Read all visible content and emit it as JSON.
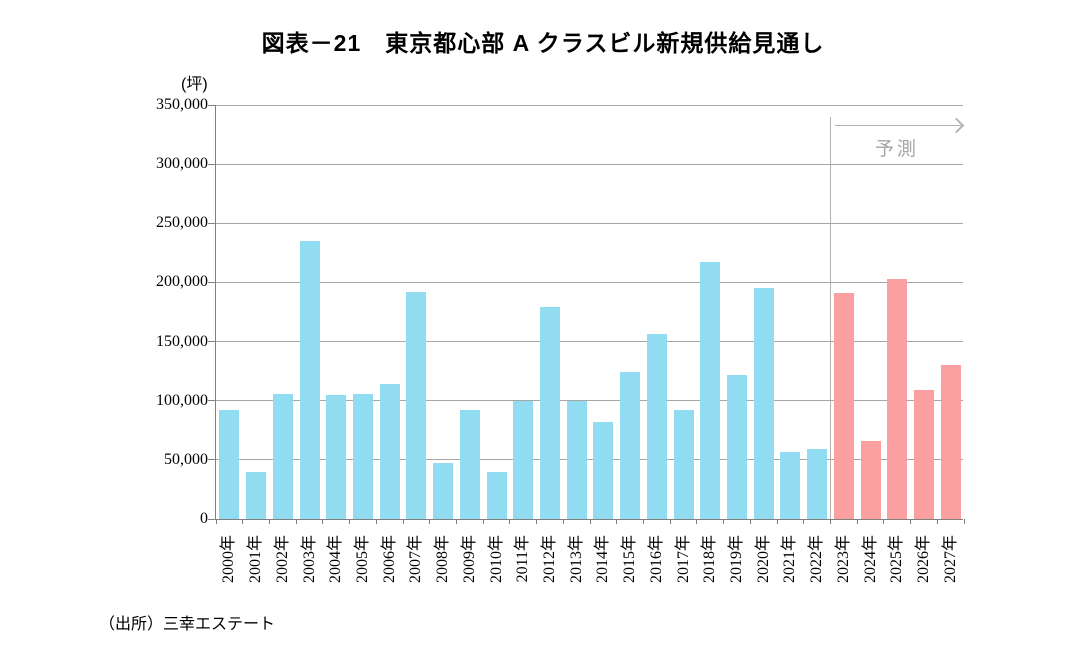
{
  "chart_data": {
    "type": "bar",
    "title": "図表－21　東京都心部 A クラスビル新規供給見通し",
    "unit_label": "(坪)",
    "ylabel": "坪",
    "xlabel": "",
    "forecast_label": "予測",
    "source_note": "（出所）三幸エステート",
    "categories": [
      "2000年",
      "2001年",
      "2002年",
      "2003年",
      "2004年",
      "2005年",
      "2006年",
      "2007年",
      "2008年",
      "2009年",
      "2010年",
      "2011年",
      "2012年",
      "2013年",
      "2014年",
      "2015年",
      "2016年",
      "2017年",
      "2018年",
      "2019年",
      "2020年",
      "2021年",
      "2022年",
      "2023年",
      "2024年",
      "2025年",
      "2026年",
      "2027年"
    ],
    "values": [
      92000,
      40000,
      106000,
      235000,
      105000,
      106000,
      114000,
      192000,
      47000,
      92000,
      40000,
      100000,
      179000,
      100000,
      82000,
      124000,
      156000,
      92000,
      217000,
      122000,
      195000,
      57000,
      59000,
      191000,
      66000,
      203000,
      109000,
      130000
    ],
    "forecast_start_index": 23,
    "ylim": [
      0,
      350000
    ],
    "ytick_step": 50000,
    "ytick_labels": [
      "0",
      "50,000",
      "100,000",
      "150,000",
      "200,000",
      "250,000",
      "300,000",
      "350,000"
    ],
    "grid": "horizontal gridlines every 50,000",
    "legend": "none",
    "colors": {
      "actual_bar": "#92dcf2",
      "forecast_bar": "#faa0a0",
      "gridline": "#a6a6a6",
      "axis": "#808080",
      "annotation_gray": "#a6a6a6"
    }
  }
}
